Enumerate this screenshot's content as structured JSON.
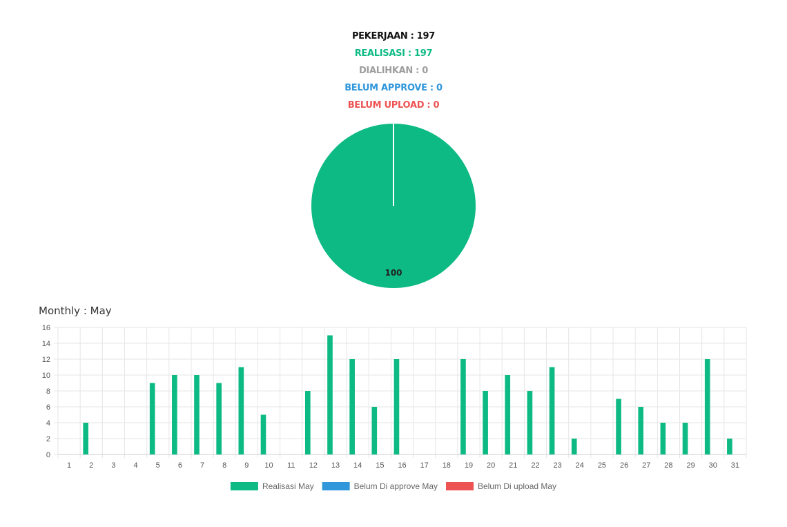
{
  "summary": {
    "pekerjaan": "PEKERJAAN : 197",
    "realisasi": "REALISASI : 197",
    "dialihkan": "DIALIHKAN : 0",
    "belum_approve": "BELUM APPROVE : 0",
    "belum_upload": "BELUM UPLOAD : 0"
  },
  "colors": {
    "pekerjaan": "#111111",
    "realisasi": "#0dba84",
    "dialihkan": "#9e9e9e",
    "belum_approve": "#3097db",
    "belum_upload": "#ee5353",
    "grid": "#e6e6e6",
    "axis_text": "#555555"
  },
  "pie_chart": {
    "type": "pie",
    "slices": [
      {
        "label": "Realisasi",
        "value": 100,
        "color": "#0dba84"
      }
    ],
    "data_label": "100"
  },
  "monthly_title": "Monthly : May",
  "chart_data": {
    "type": "bar",
    "categories": [
      "1",
      "2",
      "3",
      "4",
      "5",
      "6",
      "7",
      "8",
      "9",
      "10",
      "11",
      "12",
      "13",
      "14",
      "15",
      "16",
      "17",
      "18",
      "19",
      "20",
      "21",
      "22",
      "23",
      "24",
      "25",
      "26",
      "27",
      "28",
      "29",
      "30",
      "31"
    ],
    "series": [
      {
        "name": "Realisasi May",
        "color": "#0dba84",
        "values": [
          0,
          4,
          0,
          0,
          9,
          10,
          10,
          9,
          11,
          5,
          0,
          8,
          15,
          12,
          6,
          12,
          0,
          0,
          12,
          8,
          10,
          8,
          11,
          2,
          0,
          7,
          6,
          4,
          4,
          12,
          2
        ]
      },
      {
        "name": "Belum Di approve May",
        "color": "#3097db",
        "values": [
          0,
          0,
          0,
          0,
          0,
          0,
          0,
          0,
          0,
          0,
          0,
          0,
          0,
          0,
          0,
          0,
          0,
          0,
          0,
          0,
          0,
          0,
          0,
          0,
          0,
          0,
          0,
          0,
          0,
          0,
          0
        ]
      },
      {
        "name": "Belum Di upload May",
        "color": "#ee5353",
        "values": [
          0,
          0,
          0,
          0,
          0,
          0,
          0,
          0,
          0,
          0,
          0,
          0,
          0,
          0,
          0,
          0,
          0,
          0,
          0,
          0,
          0,
          0,
          0,
          0,
          0,
          0,
          0,
          0,
          0,
          0,
          0
        ]
      }
    ],
    "ylim": [
      0,
      16
    ],
    "yticks": [
      0,
      2,
      4,
      6,
      8,
      10,
      12,
      14,
      16
    ],
    "grid": true,
    "legend": "bottom"
  }
}
